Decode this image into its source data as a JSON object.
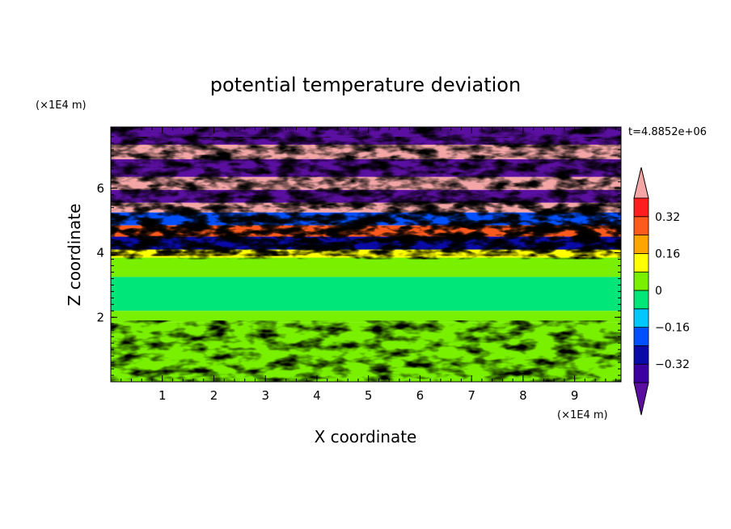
{
  "chart_data": {
    "type": "heatmap",
    "title": "potential temperature deviation",
    "xlabel": "X coordinate",
    "ylabel": "Z coordinate",
    "x_unit": "(×1E4 m)",
    "y_unit": "(×1E4 m)",
    "time_label": "t=4.8852e+06",
    "xlim": [
      0,
      9.9
    ],
    "ylim": [
      0,
      7.9
    ],
    "x_ticks": [
      "1",
      "2",
      "3",
      "4",
      "5",
      "6",
      "7",
      "8",
      "9"
    ],
    "y_ticks": [
      "2",
      "4",
      "6"
    ],
    "colorbar": {
      "levels": [
        -0.4,
        -0.32,
        -0.24,
        -0.16,
        -0.08,
        0,
        0.08,
        0.16,
        0.24,
        0.32,
        0.4
      ],
      "tick_labels": [
        "0.32",
        "0.16",
        "0",
        "−0.16",
        "−0.32"
      ],
      "tick_values": [
        0.32,
        0.16,
        0,
        -0.16,
        -0.32
      ],
      "colors": [
        "#5a0fa0",
        "#3c00a0",
        "#0a0aa8",
        "#0050ff",
        "#00c8ff",
        "#00e678",
        "#78f000",
        "#ffff00",
        "#ffa500",
        "#ff5a1e",
        "#ff1e1e",
        "#f4a6a6"
      ],
      "extend": "both"
    },
    "bands": [
      {
        "z": [
          7.35,
          7.9
        ],
        "value": -0.45
      },
      {
        "z": [
          6.9,
          7.35
        ],
        "value": 0.45
      },
      {
        "z": [
          6.35,
          6.9
        ],
        "value": -0.45
      },
      {
        "z": [
          5.95,
          6.35
        ],
        "value": 0.45
      },
      {
        "z": [
          5.55,
          5.95
        ],
        "value": -0.45
      },
      {
        "z": [
          5.25,
          5.55
        ],
        "value": 0.45
      },
      {
        "z": [
          4.85,
          5.25
        ],
        "value": -0.2
      },
      {
        "z": [
          4.5,
          4.85
        ],
        "value": 0.25
      },
      {
        "z": [
          4.1,
          4.5
        ],
        "value": -0.3
      },
      {
        "z": [
          3.85,
          4.1
        ],
        "value": 0.1
      },
      {
        "z": [
          3.45,
          3.85
        ],
        "value": 0.05
      },
      {
        "z": [
          3.25,
          3.45
        ],
        "value": 0.02
      },
      {
        "z": [
          2.2,
          3.25
        ],
        "value": -0.02
      },
      {
        "z": [
          1.85,
          2.2
        ],
        "value": 0.03
      },
      {
        "z": [
          0,
          1.85
        ],
        "value": 0.03
      }
    ]
  }
}
